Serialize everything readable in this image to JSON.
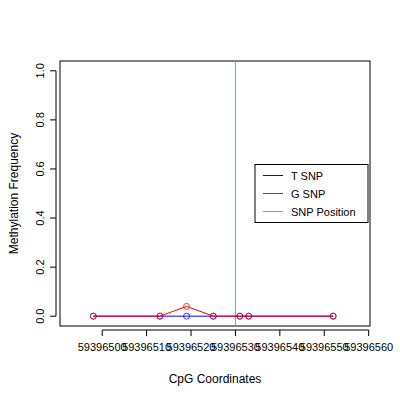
{
  "chart_data": {
    "type": "line",
    "x_label": "CpG Coordinates",
    "y_label": "Methylation Frequency",
    "x": [
      59396498,
      59396513,
      59396519,
      59396525,
      59396531,
      59396533,
      59396552
    ],
    "series": [
      {
        "name": "T SNP",
        "color": "#0000ff",
        "marker": "circle",
        "values": [
          0,
          0,
          0,
          0,
          0,
          0,
          0
        ]
      },
      {
        "name": "G SNP",
        "color": "#ff0000",
        "marker": "circle",
        "values": [
          0,
          0,
          0.04,
          0,
          0,
          0,
          0
        ]
      }
    ],
    "vlines": [
      {
        "name": "SNP Position",
        "x": 59396530,
        "color": "#00ff00"
      }
    ],
    "xlim": [
      59396490.5,
      59396560.3
    ],
    "xticks": [
      59396500,
      59396510,
      59396520,
      59396530,
      59396540,
      59396550,
      59396560
    ],
    "ylim": [
      -0.04,
      1.04
    ],
    "yticks": [
      {
        "value": 0,
        "label": "0.0"
      },
      0.2,
      0.4,
      0.6,
      0.8,
      {
        "value": 1,
        "label": "1.0"
      }
    ],
    "legend": "right"
  }
}
